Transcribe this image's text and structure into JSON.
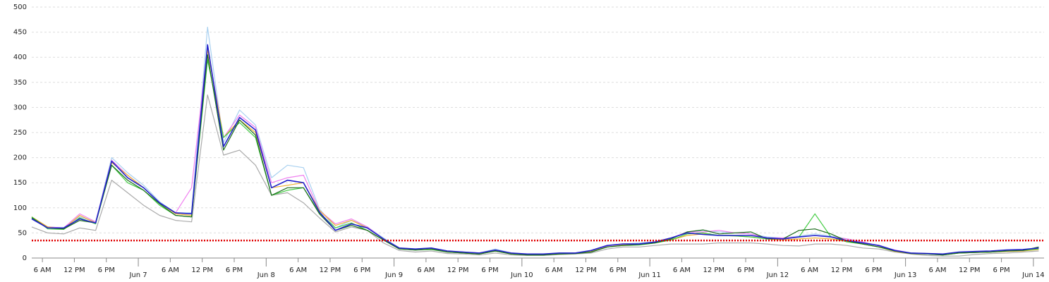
{
  "chart_data": {
    "type": "line",
    "x": [
      4,
      7,
      10,
      13,
      16,
      19,
      22,
      25,
      28,
      31,
      34,
      37,
      40,
      43,
      46,
      49,
      52,
      55,
      58,
      61,
      64,
      67,
      70,
      73,
      76,
      79,
      82,
      85,
      88,
      91,
      94,
      97,
      100,
      103,
      106,
      109,
      112,
      115,
      118,
      121,
      124,
      127,
      130,
      133,
      136,
      139,
      142,
      145,
      148,
      151,
      154,
      157,
      160,
      163,
      166,
      169,
      172,
      175,
      178,
      181,
      184,
      187,
      190,
      193
    ],
    "series": [
      {
        "color": "#aaaaaa",
        "values": [
          62,
          50,
          48,
          60,
          55,
          155,
          130,
          105,
          85,
          75,
          72,
          325,
          205,
          215,
          185,
          125,
          130,
          110,
          80,
          52,
          62,
          55,
          30,
          15,
          12,
          14,
          9,
          8,
          6,
          10,
          6,
          5,
          5,
          7,
          8,
          10,
          18,
          22,
          22,
          25,
          28,
          28,
          28,
          30,
          30,
          30,
          28,
          25,
          24,
          28,
          28,
          25,
          20,
          18,
          12,
          8,
          5,
          4,
          4,
          7,
          9,
          10,
          12,
          14
        ]
      },
      {
        "color": "#a8d0f0",
        "values": [
          80,
          62,
          60,
          82,
          72,
          200,
          170,
          145,
          112,
          90,
          90,
          460,
          230,
          295,
          265,
          160,
          185,
          180,
          98,
          60,
          75,
          62,
          40,
          20,
          18,
          20,
          14,
          12,
          10,
          18,
          10,
          8,
          8,
          10,
          10,
          14,
          24,
          28,
          30,
          32,
          40,
          52,
          55,
          52,
          50,
          48,
          42,
          40,
          44,
          48,
          44,
          38,
          32,
          24,
          15,
          10,
          9,
          8,
          11,
          12,
          13,
          15,
          16,
          19
        ]
      },
      {
        "color": "#f080f0",
        "values": [
          80,
          62,
          60,
          88,
          72,
          195,
          165,
          140,
          110,
          90,
          140,
          420,
          240,
          285,
          260,
          150,
          160,
          165,
          95,
          68,
          78,
          62,
          38,
          20,
          18,
          20,
          14,
          12,
          10,
          16,
          10,
          7,
          7,
          9,
          10,
          14,
          24,
          28,
          28,
          32,
          40,
          52,
          52,
          55,
          50,
          48,
          40,
          40,
          42,
          45,
          42,
          38,
          32,
          24,
          16,
          10,
          9,
          8,
          11,
          12,
          14,
          15,
          16,
          19
        ]
      },
      {
        "color": "#f0b030",
        "values": [
          82,
          62,
          58,
          85,
          70,
          190,
          165,
          140,
          110,
          88,
          85,
          415,
          240,
          275,
          250,
          140,
          145,
          150,
          95,
          65,
          75,
          60,
          38,
          20,
          18,
          20,
          13,
          11,
          9,
          14,
          9,
          7,
          7,
          9,
          10,
          13,
          22,
          26,
          28,
          32,
          36,
          45,
          48,
          45,
          44,
          42,
          38,
          36,
          38,
          40,
          38,
          33,
          28,
          22,
          13,
          9,
          8,
          7,
          10,
          11,
          12,
          13,
          14,
          17
        ]
      },
      {
        "color": "#44cc44",
        "values": [
          82,
          58,
          57,
          80,
          68,
          185,
          150,
          135,
          105,
          85,
          82,
          395,
          240,
          270,
          240,
          125,
          135,
          140,
          90,
          60,
          70,
          55,
          36,
          18,
          16,
          17,
          12,
          10,
          8,
          14,
          8,
          6,
          6,
          8,
          9,
          12,
          22,
          25,
          26,
          30,
          36,
          48,
          50,
          45,
          44,
          42,
          38,
          38,
          42,
          88,
          42,
          32,
          28,
          22,
          14,
          10,
          8,
          6,
          10,
          11,
          12,
          14,
          15,
          18
        ]
      },
      {
        "color": "#1a6b1a",
        "values": [
          80,
          60,
          58,
          75,
          70,
          185,
          155,
          135,
          108,
          85,
          82,
          405,
          215,
          275,
          245,
          125,
          140,
          140,
          88,
          55,
          65,
          55,
          36,
          18,
          16,
          18,
          12,
          10,
          8,
          14,
          8,
          6,
          6,
          8,
          9,
          12,
          22,
          25,
          27,
          30,
          38,
          52,
          56,
          48,
          50,
          52,
          38,
          38,
          55,
          58,
          48,
          34,
          28,
          22,
          14,
          9,
          8,
          6,
          10,
          11,
          12,
          14,
          15,
          22
        ]
      },
      {
        "color": "#2222cc",
        "values": [
          78,
          60,
          60,
          78,
          70,
          193,
          160,
          140,
          110,
          90,
          88,
          425,
          222,
          280,
          255,
          140,
          155,
          150,
          92,
          55,
          68,
          60,
          38,
          20,
          18,
          20,
          14,
          12,
          10,
          16,
          10,
          8,
          8,
          10,
          10,
          15,
          25,
          28,
          28,
          32,
          40,
          50,
          47,
          45,
          45,
          45,
          40,
          38,
          42,
          45,
          42,
          35,
          30,
          25,
          15,
          10,
          9,
          8,
          12,
          13,
          14,
          16,
          17,
          20
        ]
      }
    ],
    "reference_line": {
      "value": 35,
      "color": "#e00000"
    },
    "xlim": [
      4,
      194
    ],
    "xticks": [
      {
        "value": 6,
        "label": "6 AM"
      },
      {
        "value": 12,
        "label": "12 PM"
      },
      {
        "value": 18,
        "label": "6 PM"
      },
      {
        "value": 24,
        "label": "Jun 7"
      },
      {
        "value": 30,
        "label": "6 AM"
      },
      {
        "value": 36,
        "label": "12 PM"
      },
      {
        "value": 42,
        "label": "6 PM"
      },
      {
        "value": 48,
        "label": "Jun 8"
      },
      {
        "value": 54,
        "label": "6 AM"
      },
      {
        "value": 60,
        "label": "12 PM"
      },
      {
        "value": 66,
        "label": "6 PM"
      },
      {
        "value": 72,
        "label": "Jun 9"
      },
      {
        "value": 78,
        "label": "6 AM"
      },
      {
        "value": 84,
        "label": "12 PM"
      },
      {
        "value": 90,
        "label": "6 PM"
      },
      {
        "value": 96,
        "label": "Jun 10"
      },
      {
        "value": 102,
        "label": "6 AM"
      },
      {
        "value": 108,
        "label": "12 PM"
      },
      {
        "value": 114,
        "label": "6 PM"
      },
      {
        "value": 120,
        "label": "Jun 11"
      },
      {
        "value": 126,
        "label": "6 AM"
      },
      {
        "value": 132,
        "label": "12 PM"
      },
      {
        "value": 138,
        "label": "6 PM"
      },
      {
        "value": 144,
        "label": "Jun 12"
      },
      {
        "value": 150,
        "label": "6 AM"
      },
      {
        "value": 156,
        "label": "12 PM"
      },
      {
        "value": 162,
        "label": "6 PM"
      },
      {
        "value": 168,
        "label": "Jun 13"
      },
      {
        "value": 174,
        "label": "6 AM"
      },
      {
        "value": 180,
        "label": "12 PM"
      },
      {
        "value": 186,
        "label": "6 PM"
      },
      {
        "value": 192,
        "label": "Jun 14"
      }
    ],
    "ylim": [
      0,
      500
    ],
    "yticks": [
      0,
      50,
      100,
      150,
      200,
      250,
      300,
      350,
      400,
      450,
      500
    ],
    "grid": true
  }
}
